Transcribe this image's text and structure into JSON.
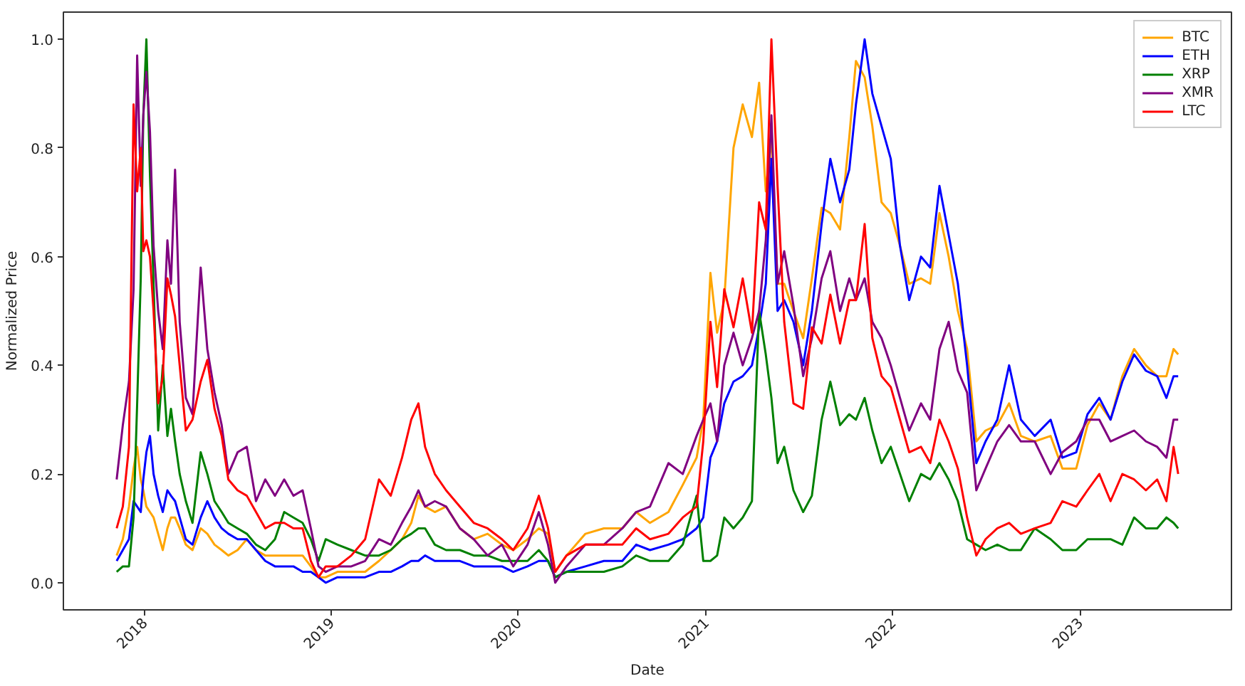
{
  "chart_data": {
    "type": "line",
    "xlabel": "Date",
    "ylabel": "Normalized Price",
    "x": [
      "2017-11-08",
      "2017-11-20",
      "2017-12-02",
      "2017-12-11",
      "2017-12-18",
      "2017-12-25",
      "2017-12-30",
      "2018-01-05",
      "2018-01-12",
      "2018-01-19",
      "2018-01-28",
      "2018-02-06",
      "2018-02-15",
      "2018-02-22",
      "2018-03-02",
      "2018-03-11",
      "2018-03-23",
      "2018-04-05",
      "2018-04-21",
      "2018-05-04",
      "2018-05-18",
      "2018-06-01",
      "2018-06-14",
      "2018-07-02",
      "2018-07-20",
      "2018-08-07",
      "2018-08-25",
      "2018-09-13",
      "2018-10-01",
      "2018-10-19",
      "2018-11-06",
      "2018-11-22",
      "2018-12-07",
      "2018-12-21",
      "2019-01-13",
      "2019-02-09",
      "2019-03-08",
      "2019-04-04",
      "2019-04-27",
      "2019-05-19",
      "2019-06-06",
      "2019-06-20",
      "2019-07-03",
      "2019-07-22",
      "2019-08-13",
      "2019-09-09",
      "2019-10-06",
      "2019-11-02",
      "2019-11-30",
      "2019-12-22",
      "2020-01-19",
      "2020-02-10",
      "2020-02-28",
      "2020-03-13",
      "2020-04-04",
      "2020-05-11",
      "2020-06-16",
      "2020-07-22",
      "2020-08-18",
      "2020-09-14",
      "2020-10-20",
      "2020-11-17",
      "2020-12-14",
      "2020-12-27",
      "2021-01-10",
      "2021-01-23",
      "2021-02-06",
      "2021-02-24",
      "2021-03-14",
      "2021-04-01",
      "2021-04-15",
      "2021-04-28",
      "2021-05-09",
      "2021-05-21",
      "2021-06-03",
      "2021-06-21",
      "2021-07-10",
      "2021-07-27",
      "2021-08-15",
      "2021-09-01",
      "2021-09-20",
      "2021-10-08",
      "2021-10-21",
      "2021-11-07",
      "2021-11-22",
      "2021-12-10",
      "2021-12-28",
      "2022-01-15",
      "2022-02-02",
      "2022-02-25",
      "2022-03-15",
      "2022-04-02",
      "2022-04-20",
      "2022-05-08",
      "2022-05-26",
      "2022-06-13",
      "2022-07-01",
      "2022-07-24",
      "2022-08-16",
      "2022-09-08",
      "2022-10-05",
      "2022-11-05",
      "2022-11-28",
      "2022-12-25",
      "2023-01-16",
      "2023-02-08",
      "2023-03-02",
      "2023-03-25",
      "2023-04-17",
      "2023-05-10",
      "2023-06-01",
      "2023-06-19",
      "2023-07-03",
      "2023-07-12"
    ],
    "series": [
      {
        "name": "BTC",
        "color": "#ffa500",
        "values": [
          0.05,
          0.08,
          0.14,
          0.21,
          0.25,
          0.19,
          0.17,
          0.14,
          0.13,
          0.12,
          0.09,
          0.06,
          0.1,
          0.12,
          0.12,
          0.1,
          0.07,
          0.06,
          0.1,
          0.09,
          0.07,
          0.06,
          0.05,
          0.06,
          0.08,
          0.06,
          0.05,
          0.05,
          0.05,
          0.05,
          0.05,
          0.03,
          0.01,
          0.01,
          0.02,
          0.02,
          0.02,
          0.04,
          0.06,
          0.08,
          0.11,
          0.16,
          0.14,
          0.13,
          0.14,
          0.1,
          0.08,
          0.09,
          0.07,
          0.06,
          0.08,
          0.1,
          0.09,
          0.02,
          0.05,
          0.09,
          0.1,
          0.1,
          0.13,
          0.11,
          0.13,
          0.18,
          0.23,
          0.3,
          0.57,
          0.46,
          0.52,
          0.8,
          0.88,
          0.82,
          0.92,
          0.72,
          0.82,
          0.55,
          0.55,
          0.5,
          0.45,
          0.56,
          0.69,
          0.68,
          0.65,
          0.82,
          0.96,
          0.93,
          0.84,
          0.7,
          0.68,
          0.62,
          0.55,
          0.56,
          0.55,
          0.68,
          0.6,
          0.5,
          0.43,
          0.26,
          0.28,
          0.29,
          0.33,
          0.27,
          0.26,
          0.27,
          0.21,
          0.21,
          0.29,
          0.33,
          0.3,
          0.38,
          0.43,
          0.4,
          0.38,
          0.38,
          0.43,
          0.42
        ]
      },
      {
        "name": "ETH",
        "color": "#0000ff",
        "values": [
          0.04,
          0.06,
          0.08,
          0.15,
          0.14,
          0.13,
          0.19,
          0.24,
          0.27,
          0.2,
          0.16,
          0.13,
          0.17,
          0.16,
          0.15,
          0.12,
          0.08,
          0.07,
          0.12,
          0.15,
          0.12,
          0.1,
          0.09,
          0.08,
          0.08,
          0.06,
          0.04,
          0.03,
          0.03,
          0.03,
          0.02,
          0.02,
          0.01,
          0.0,
          0.01,
          0.01,
          0.01,
          0.02,
          0.02,
          0.03,
          0.04,
          0.04,
          0.05,
          0.04,
          0.04,
          0.04,
          0.03,
          0.03,
          0.03,
          0.02,
          0.03,
          0.04,
          0.04,
          0.01,
          0.02,
          0.03,
          0.04,
          0.04,
          0.07,
          0.06,
          0.07,
          0.08,
          0.1,
          0.12,
          0.23,
          0.26,
          0.33,
          0.37,
          0.38,
          0.4,
          0.47,
          0.55,
          0.78,
          0.5,
          0.52,
          0.48,
          0.4,
          0.5,
          0.66,
          0.78,
          0.7,
          0.76,
          0.88,
          1.0,
          0.9,
          0.84,
          0.78,
          0.62,
          0.52,
          0.6,
          0.58,
          0.73,
          0.64,
          0.55,
          0.4,
          0.22,
          0.26,
          0.3,
          0.4,
          0.3,
          0.27,
          0.3,
          0.23,
          0.24,
          0.31,
          0.34,
          0.3,
          0.37,
          0.42,
          0.39,
          0.38,
          0.34,
          0.38,
          0.38
        ]
      },
      {
        "name": "XRP",
        "color": "#008000",
        "values": [
          0.02,
          0.03,
          0.03,
          0.12,
          0.33,
          0.56,
          0.86,
          1.0,
          0.75,
          0.55,
          0.28,
          0.4,
          0.27,
          0.32,
          0.26,
          0.2,
          0.15,
          0.11,
          0.24,
          0.2,
          0.15,
          0.13,
          0.11,
          0.1,
          0.09,
          0.07,
          0.06,
          0.08,
          0.13,
          0.12,
          0.11,
          0.08,
          0.04,
          0.08,
          0.07,
          0.06,
          0.05,
          0.05,
          0.06,
          0.08,
          0.09,
          0.1,
          0.1,
          0.07,
          0.06,
          0.06,
          0.05,
          0.05,
          0.04,
          0.04,
          0.04,
          0.06,
          0.04,
          0.01,
          0.02,
          0.02,
          0.02,
          0.03,
          0.05,
          0.04,
          0.04,
          0.07,
          0.16,
          0.04,
          0.04,
          0.05,
          0.12,
          0.1,
          0.12,
          0.15,
          0.5,
          0.42,
          0.34,
          0.22,
          0.25,
          0.17,
          0.13,
          0.16,
          0.3,
          0.37,
          0.29,
          0.31,
          0.3,
          0.34,
          0.28,
          0.22,
          0.25,
          0.2,
          0.15,
          0.2,
          0.19,
          0.22,
          0.19,
          0.15,
          0.08,
          0.07,
          0.06,
          0.07,
          0.06,
          0.06,
          0.1,
          0.08,
          0.06,
          0.06,
          0.08,
          0.08,
          0.08,
          0.07,
          0.12,
          0.1,
          0.1,
          0.12,
          0.11,
          0.1
        ]
      },
      {
        "name": "XMR",
        "color": "#800080",
        "values": [
          0.19,
          0.29,
          0.37,
          0.54,
          0.97,
          0.73,
          0.86,
          0.94,
          0.83,
          0.62,
          0.5,
          0.43,
          0.63,
          0.55,
          0.76,
          0.48,
          0.34,
          0.31,
          0.58,
          0.43,
          0.35,
          0.29,
          0.2,
          0.24,
          0.25,
          0.15,
          0.19,
          0.16,
          0.19,
          0.16,
          0.17,
          0.1,
          0.03,
          0.02,
          0.03,
          0.03,
          0.04,
          0.08,
          0.07,
          0.11,
          0.14,
          0.17,
          0.14,
          0.15,
          0.14,
          0.1,
          0.08,
          0.05,
          0.07,
          0.03,
          0.07,
          0.13,
          0.07,
          0.0,
          0.03,
          0.07,
          0.07,
          0.1,
          0.13,
          0.14,
          0.22,
          0.2,
          0.27,
          0.3,
          0.33,
          0.26,
          0.4,
          0.46,
          0.4,
          0.45,
          0.5,
          0.63,
          0.86,
          0.55,
          0.61,
          0.51,
          0.38,
          0.45,
          0.56,
          0.61,
          0.5,
          0.56,
          0.52,
          0.56,
          0.48,
          0.45,
          0.4,
          0.34,
          0.28,
          0.33,
          0.3,
          0.43,
          0.48,
          0.39,
          0.35,
          0.17,
          0.21,
          0.26,
          0.29,
          0.26,
          0.26,
          0.2,
          0.24,
          0.26,
          0.3,
          0.3,
          0.26,
          0.27,
          0.28,
          0.26,
          0.25,
          0.23,
          0.3,
          0.3
        ]
      },
      {
        "name": "LTC",
        "color": "#ff0000",
        "values": [
          0.1,
          0.14,
          0.25,
          0.88,
          0.72,
          0.8,
          0.61,
          0.63,
          0.6,
          0.5,
          0.33,
          0.38,
          0.56,
          0.53,
          0.49,
          0.4,
          0.28,
          0.3,
          0.37,
          0.41,
          0.32,
          0.27,
          0.19,
          0.17,
          0.16,
          0.13,
          0.1,
          0.11,
          0.11,
          0.1,
          0.1,
          0.04,
          0.01,
          0.03,
          0.03,
          0.05,
          0.08,
          0.19,
          0.16,
          0.23,
          0.3,
          0.33,
          0.25,
          0.2,
          0.17,
          0.14,
          0.11,
          0.1,
          0.08,
          0.06,
          0.1,
          0.16,
          0.1,
          0.02,
          0.05,
          0.07,
          0.07,
          0.07,
          0.1,
          0.08,
          0.09,
          0.12,
          0.14,
          0.26,
          0.48,
          0.36,
          0.54,
          0.47,
          0.56,
          0.46,
          0.7,
          0.65,
          1.0,
          0.73,
          0.48,
          0.33,
          0.32,
          0.47,
          0.44,
          0.53,
          0.44,
          0.52,
          0.52,
          0.66,
          0.45,
          0.38,
          0.36,
          0.3,
          0.24,
          0.25,
          0.22,
          0.3,
          0.26,
          0.21,
          0.12,
          0.05,
          0.08,
          0.1,
          0.11,
          0.09,
          0.1,
          0.11,
          0.15,
          0.14,
          0.17,
          0.2,
          0.15,
          0.2,
          0.19,
          0.17,
          0.19,
          0.15,
          0.25,
          0.2
        ]
      }
    ],
    "xlim": [
      "2017-07-27",
      "2023-10-24"
    ],
    "xticks": [
      "2018",
      "2019",
      "2020",
      "2021",
      "2022",
      "2023"
    ],
    "ylim": [
      -0.05,
      1.05
    ],
    "yticks": [
      {
        "value": 0,
        "label": "0.0"
      },
      0.2,
      0.4,
      0.6,
      0.8,
      {
        "value": 1,
        "label": "1.0"
      }
    ],
    "legend": "top right"
  }
}
